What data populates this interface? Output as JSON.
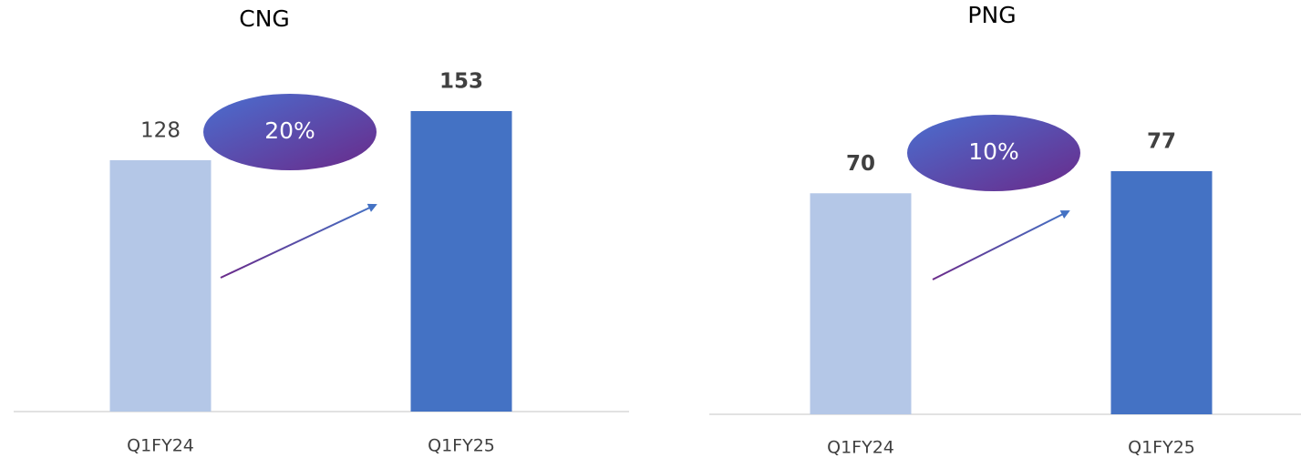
{
  "chart_data": [
    {
      "type": "bar",
      "title": "CNG",
      "categories": [
        "Q1FY24",
        "Q1FY25"
      ],
      "values": [
        128,
        153
      ],
      "colors": [
        "#b4c7e7",
        "#4472c4"
      ],
      "annotation": "20%"
    },
    {
      "type": "bar",
      "title": "PNG",
      "categories": [
        "Q1FY24",
        "Q1FY25"
      ],
      "values": [
        70,
        77
      ],
      "colors": [
        "#b4c7e7",
        "#4472c4"
      ],
      "annotation": "10%"
    }
  ]
}
